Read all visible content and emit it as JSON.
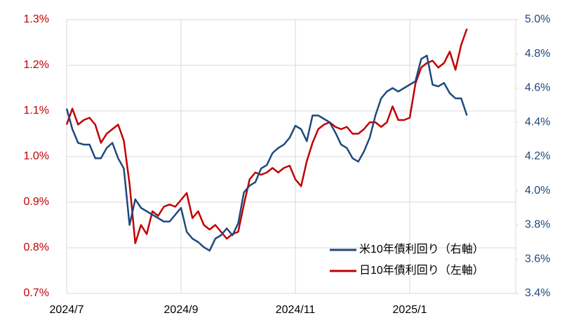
{
  "chart_data": {
    "type": "line",
    "categories": [
      "2024/7",
      null,
      null,
      null,
      null,
      null,
      null,
      null,
      null,
      null,
      null,
      null,
      null,
      null,
      null,
      null,
      null,
      null,
      null,
      null,
      "2024/9",
      null,
      null,
      null,
      null,
      null,
      null,
      null,
      null,
      null,
      null,
      null,
      null,
      null,
      null,
      null,
      null,
      null,
      null,
      null,
      "2024/11",
      null,
      null,
      null,
      null,
      null,
      null,
      null,
      null,
      null,
      null,
      null,
      null,
      null,
      null,
      null,
      null,
      null,
      null,
      null,
      "2025/1",
      null,
      null,
      null,
      null,
      null,
      null,
      null,
      null,
      null,
      null
    ],
    "series": [
      {
        "name": "米10年債利回り（右軸）",
        "color": "#1f497d",
        "axis": "y2",
        "values": [
          4.48,
          4.36,
          4.28,
          4.27,
          4.27,
          4.19,
          4.19,
          4.25,
          4.28,
          4.19,
          4.13,
          3.8,
          3.95,
          3.9,
          3.88,
          3.86,
          3.84,
          3.82,
          3.82,
          3.86,
          3.9,
          3.76,
          3.72,
          3.7,
          3.67,
          3.65,
          3.72,
          3.74,
          3.78,
          3.74,
          3.81,
          3.99,
          4.03,
          4.05,
          4.13,
          4.15,
          4.22,
          4.25,
          4.27,
          4.31,
          4.38,
          4.36,
          4.29,
          4.44,
          4.44,
          4.42,
          4.4,
          4.34,
          4.27,
          4.25,
          4.19,
          4.17,
          4.23,
          4.31,
          4.44,
          4.54,
          4.58,
          4.6,
          4.58,
          4.6,
          4.62,
          4.64,
          4.77,
          4.79,
          4.62,
          4.61,
          4.63,
          4.57,
          4.54,
          4.54,
          4.44
        ]
      },
      {
        "name": "日10年債利回り（左軸）",
        "color": "#c00000",
        "values": [
          1.07,
          1.105,
          1.07,
          1.08,
          1.085,
          1.07,
          1.03,
          1.05,
          1.06,
          1.07,
          1.035,
          0.94,
          0.81,
          0.85,
          0.83,
          0.88,
          0.87,
          0.89,
          0.895,
          0.89,
          0.905,
          0.92,
          0.865,
          0.88,
          0.85,
          0.84,
          0.85,
          0.835,
          0.82,
          0.83,
          0.835,
          0.895,
          0.95,
          0.965,
          0.96,
          0.965,
          0.975,
          0.965,
          0.975,
          0.98,
          0.95,
          0.935,
          0.99,
          1.03,
          1.06,
          1.07,
          1.075,
          1.065,
          1.06,
          1.065,
          1.05,
          1.05,
          1.06,
          1.075,
          1.075,
          1.065,
          1.075,
          1.11,
          1.08,
          1.08,
          1.085,
          1.16,
          1.195,
          1.205,
          1.21,
          1.195,
          1.205,
          1.23,
          1.19,
          1.245,
          1.28
        ]
      }
    ],
    "ylim": [
      0.7,
      1.3
    ],
    "yticks": [
      {
        "value": 0.7,
        "label": "0.7%"
      },
      {
        "value": 0.8,
        "label": "0.8%"
      },
      {
        "value": 0.9,
        "label": "0.9%"
      },
      {
        "value": 1.0,
        "label": "1.0%"
      },
      {
        "value": 1.1,
        "label": "1.1%"
      },
      {
        "value": 1.2,
        "label": "1.2%"
      },
      {
        "value": 1.3,
        "label": "1.3%"
      }
    ],
    "y2lim": [
      3.4,
      5.0
    ],
    "y2ticks": [
      {
        "value": 3.4,
        "label": "3.4%"
      },
      {
        "value": 3.6,
        "label": "3.6%"
      },
      {
        "value": 3.8,
        "label": "3.8%"
      },
      {
        "value": 4.0,
        "label": "4.0%"
      },
      {
        "value": 4.2,
        "label": "4.2%"
      },
      {
        "value": 4.4,
        "label": "4.4%"
      },
      {
        "value": 4.6,
        "label": "4.6%"
      },
      {
        "value": 4.8,
        "label": "4.8%"
      },
      {
        "value": 5.0,
        "label": "5.0%"
      }
    ],
    "ytick_color": "#c00000",
    "y2tick_color": "#1f497d",
    "grid": true
  }
}
